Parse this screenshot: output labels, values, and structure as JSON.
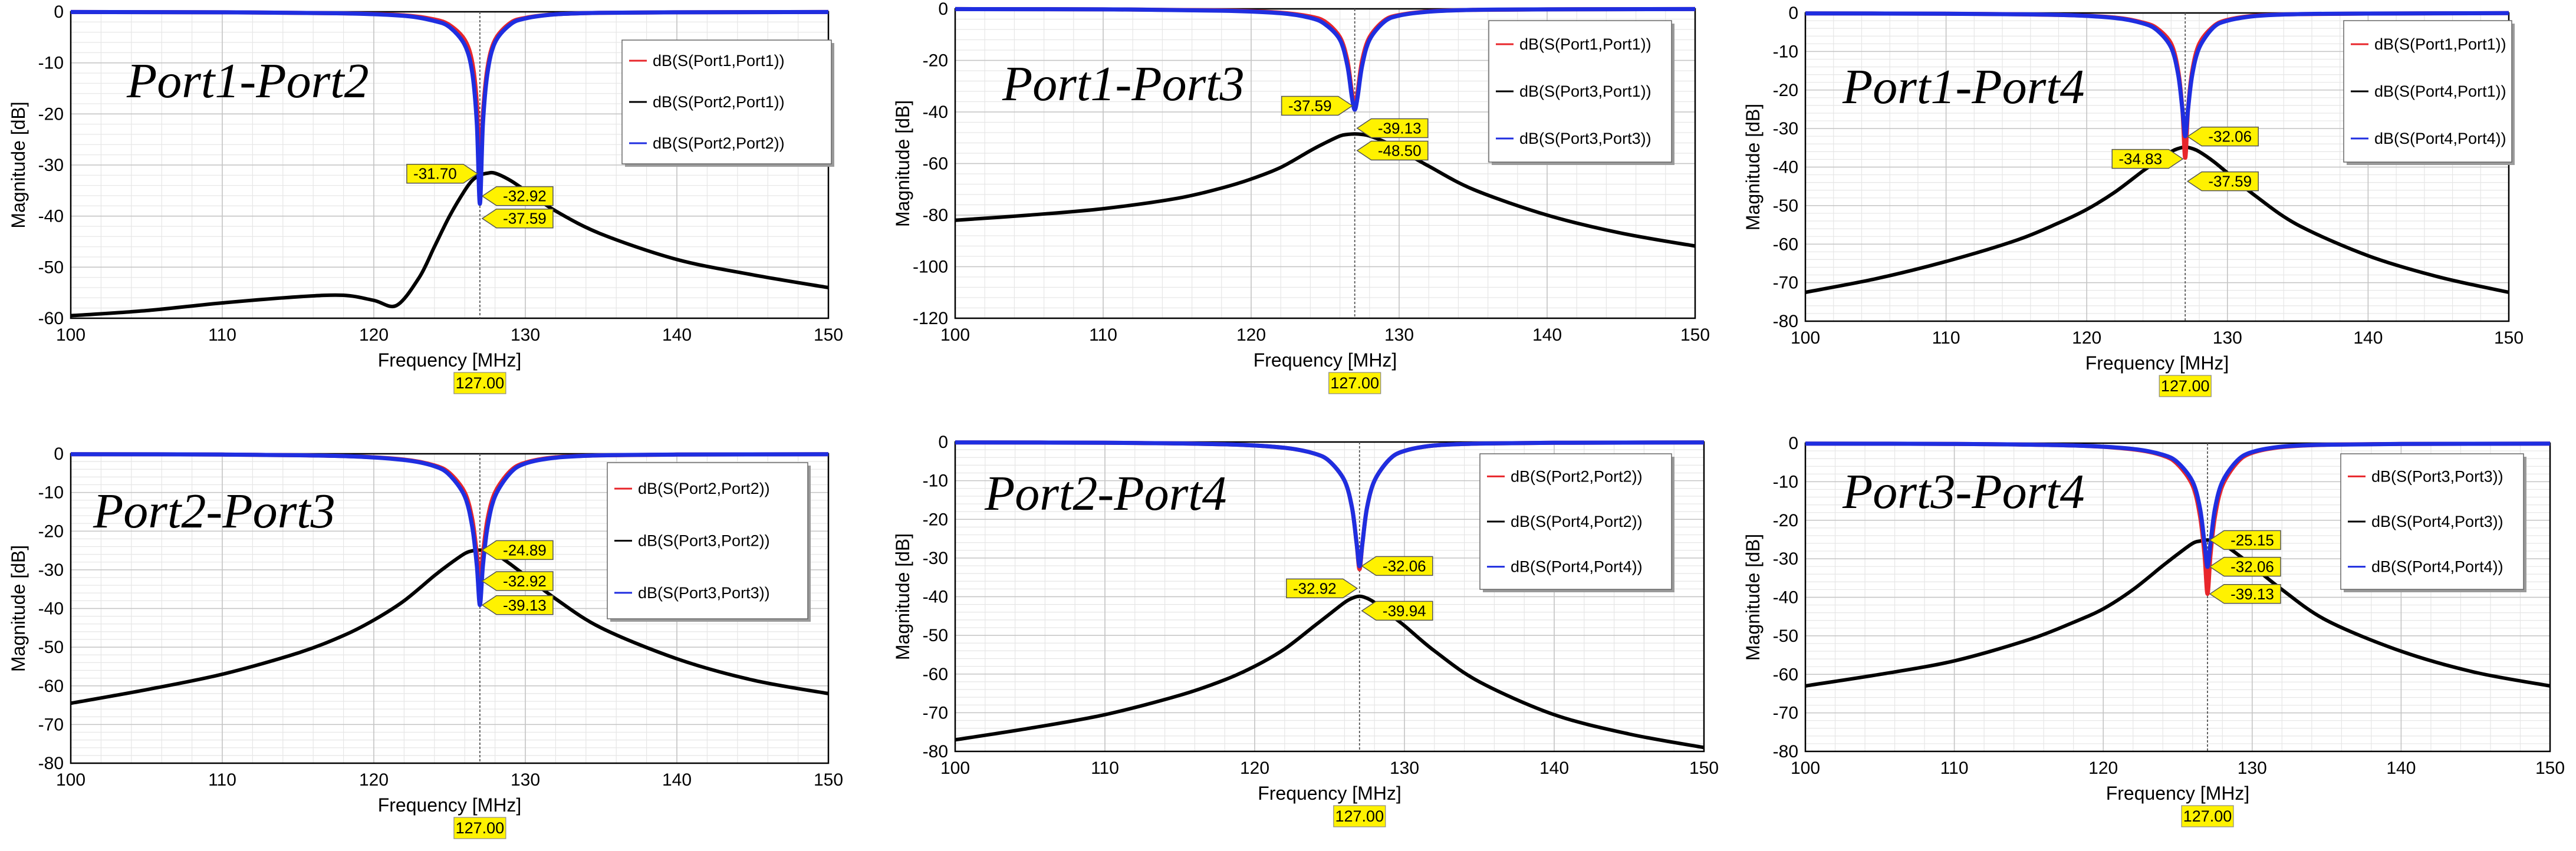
{
  "x_label": "Frequency [MHz]",
  "y_label": "Magnitude [dB]",
  "marker_label": "127.00",
  "colors": {
    "red": "#e8262b",
    "black": "#000000",
    "blue": "#1f2ee0",
    "marker": "#fff200"
  },
  "chart_data": [
    {
      "type": "line",
      "title": "Port1-Port2",
      "xlim": [
        100,
        150
      ],
      "ylim": [
        -60,
        0
      ],
      "x_ticks": [
        100,
        110,
        120,
        130,
        140,
        150
      ],
      "y_ticks": [
        0,
        -10,
        -20,
        -30,
        -40,
        -50,
        -60
      ],
      "legend": [
        "dB(S(Port1,Port1))",
        "dB(S(Port2,Port1))",
        "dB(S(Port2,Port2))"
      ],
      "marker_x": 127,
      "marker_values": [
        "-31.70",
        "-32.92",
        "-37.59"
      ],
      "series": [
        {
          "name": "dB(S(Port1,Port1))",
          "color": "red",
          "x": [
            100,
            110,
            118,
            122,
            124,
            125,
            126,
            126.5,
            126.8,
            127,
            127.2,
            127.5,
            128,
            129,
            130,
            132,
            135,
            140,
            150
          ],
          "y": [
            -0.05,
            -0.1,
            -0.3,
            -0.7,
            -1.5,
            -2.6,
            -5.5,
            -10,
            -18,
            -31.7,
            -20,
            -11,
            -5.5,
            -2.2,
            -1.2,
            -0.5,
            -0.2,
            -0.1,
            -0.05
          ]
        },
        {
          "name": "dB(S(Port2,Port1))",
          "color": "black",
          "x": [
            100,
            105,
            110,
            115,
            118,
            120,
            121.5,
            123,
            124,
            125,
            126,
            126.5,
            127,
            127.5,
            128,
            129,
            130,
            132,
            135,
            140,
            145,
            150
          ],
          "y": [
            -59.5,
            -58.5,
            -57,
            -55.8,
            -55.5,
            -56.5,
            -57.5,
            -52,
            -46,
            -40,
            -35,
            -33,
            -32,
            -31.6,
            -31.6,
            -33,
            -35,
            -39,
            -43.5,
            -48.5,
            -51.5,
            -54
          ]
        },
        {
          "name": "dB(S(Port2,Port2))",
          "color": "blue",
          "x": [
            100,
            110,
            118,
            122,
            124,
            125,
            126,
            126.5,
            126.8,
            127,
            127.2,
            127.5,
            128,
            129,
            130,
            132,
            135,
            140,
            150
          ],
          "y": [
            -0.05,
            -0.1,
            -0.3,
            -0.8,
            -1.8,
            -3,
            -6.5,
            -12,
            -22,
            -37.6,
            -22,
            -12,
            -6,
            -2.5,
            -1.3,
            -0.5,
            -0.2,
            -0.1,
            -0.05
          ]
        }
      ]
    },
    {
      "type": "line",
      "title": "Port1-Port3",
      "xlim": [
        100,
        150
      ],
      "ylim": [
        -120,
        0
      ],
      "x_ticks": [
        100,
        110,
        120,
        130,
        140,
        150
      ],
      "y_ticks": [
        0,
        -20,
        -40,
        -60,
        -80,
        -100,
        -120
      ],
      "legend": [
        "dB(S(Port1,Port1))",
        "dB(S(Port3,Port1))",
        "dB(S(Port3,Port3))"
      ],
      "marker_x": 127,
      "marker_values": [
        "-37.59",
        "-39.13",
        "-48.50"
      ],
      "series": [
        {
          "name": "dB(S(Port1,Port1))",
          "color": "red",
          "x": [
            100,
            110,
            118,
            122,
            124,
            125,
            126,
            126.5,
            126.8,
            127,
            127.2,
            127.5,
            128,
            129,
            130,
            132,
            135,
            140,
            150
          ],
          "y": [
            -0.1,
            -0.2,
            -0.6,
            -1.5,
            -3,
            -5,
            -11,
            -20,
            -32,
            -37.6,
            -32,
            -20,
            -11,
            -4.5,
            -2.4,
            -1,
            -0.4,
            -0.2,
            -0.1
          ]
        },
        {
          "name": "dB(S(Port3,Port1))",
          "color": "black",
          "x": [
            100,
            105,
            110,
            115,
            118,
            120,
            122,
            124,
            125,
            126,
            126.5,
            127,
            127.5,
            128,
            129,
            130,
            132,
            135,
            140,
            145,
            150
          ],
          "y": [
            -82,
            -80,
            -77.5,
            -73.5,
            -69.5,
            -66,
            -61.5,
            -55,
            -52,
            -49.3,
            -48.7,
            -48.5,
            -48.7,
            -49.3,
            -51.5,
            -54.5,
            -61,
            -70,
            -80,
            -87,
            -92
          ]
        },
        {
          "name": "dB(S(Port3,Port3))",
          "color": "blue",
          "x": [
            100,
            110,
            118,
            122,
            124,
            125,
            126,
            126.5,
            126.8,
            127,
            127.2,
            127.5,
            128,
            129,
            130,
            132,
            135,
            140,
            150
          ],
          "y": [
            -0.1,
            -0.2,
            -0.7,
            -1.7,
            -3.5,
            -6,
            -12,
            -22,
            -34,
            -39.1,
            -34,
            -22,
            -12,
            -5,
            -2.6,
            -1.1,
            -0.4,
            -0.2,
            -0.1
          ]
        }
      ]
    },
    {
      "type": "line",
      "title": "Port1-Port4",
      "xlim": [
        100,
        150
      ],
      "ylim": [
        -80,
        0
      ],
      "x_ticks": [
        100,
        110,
        120,
        130,
        140,
        150
      ],
      "y_ticks": [
        0,
        -10,
        -20,
        -30,
        -40,
        -50,
        -60,
        -70,
        -80
      ],
      "legend": [
        "dB(S(Port1,Port1))",
        "dB(S(Port4,Port1))",
        "dB(S(Port4,Port4))"
      ],
      "marker_x": 127,
      "marker_values": [
        "-34.83",
        "-32.06",
        "-37.59"
      ],
      "series": [
        {
          "name": "dB(S(Port1,Port1))",
          "color": "red",
          "x": [
            100,
            110,
            118,
            122,
            124,
            125,
            126,
            126.5,
            126.8,
            127,
            127.2,
            127.5,
            128,
            129,
            130,
            132,
            135,
            140,
            150
          ],
          "y": [
            -0.1,
            -0.2,
            -0.5,
            -1.2,
            -2.5,
            -4,
            -8,
            -15,
            -25,
            -37.6,
            -25,
            -15,
            -8,
            -3.5,
            -1.8,
            -0.7,
            -0.3,
            -0.15,
            -0.05
          ]
        },
        {
          "name": "dB(S(Port4,Port1))",
          "color": "black",
          "x": [
            100,
            105,
            110,
            115,
            118,
            120,
            122,
            124,
            125,
            126,
            126.5,
            127,
            127.5,
            128,
            129,
            130,
            132,
            135,
            140,
            145,
            150
          ],
          "y": [
            -72.5,
            -69,
            -64.5,
            -59,
            -54.5,
            -51,
            -46.5,
            -41,
            -38.5,
            -36,
            -35.2,
            -34.8,
            -35.2,
            -36,
            -38.5,
            -41.5,
            -47.5,
            -55,
            -63,
            -68.5,
            -72.5
          ]
        },
        {
          "name": "dB(S(Port4,Port4))",
          "color": "blue",
          "x": [
            100,
            110,
            118,
            122,
            124,
            125,
            126,
            126.5,
            126.8,
            127,
            127.2,
            127.5,
            128,
            129,
            130,
            132,
            135,
            140,
            150
          ],
          "y": [
            -0.1,
            -0.2,
            -0.5,
            -1.3,
            -2.7,
            -4.5,
            -9,
            -16,
            -25,
            -32,
            -25,
            -16,
            -9,
            -3.8,
            -2,
            -0.8,
            -0.3,
            -0.15,
            -0.05
          ]
        }
      ]
    },
    {
      "type": "line",
      "title": "Port2-Port3",
      "xlim": [
        100,
        150
      ],
      "ylim": [
        -80,
        0
      ],
      "x_ticks": [
        100,
        110,
        120,
        130,
        140,
        150
      ],
      "y_ticks": [
        0,
        -10,
        -20,
        -30,
        -40,
        -50,
        -60,
        -70,
        -80
      ],
      "legend": [
        "dB(S(Port2,Port2))",
        "dB(S(Port3,Port2))",
        "dB(S(Port3,Port3))"
      ],
      "marker_x": 127,
      "marker_values": [
        "-24.89",
        "-32.92",
        "-39.13"
      ],
      "series": [
        {
          "name": "dB(S(Port2,Port2))",
          "color": "red",
          "x": [
            100,
            110,
            118,
            122,
            124,
            125,
            126,
            126.5,
            126.8,
            127,
            127.2,
            127.5,
            128,
            129,
            130,
            132,
            135,
            140,
            150
          ],
          "y": [
            -0.1,
            -0.2,
            -0.6,
            -1.5,
            -3,
            -5,
            -10,
            -17,
            -26,
            -32.9,
            -26,
            -17,
            -10,
            -4.5,
            -2.3,
            -0.9,
            -0.4,
            -0.2,
            -0.1
          ]
        },
        {
          "name": "dB(S(Port3,Port2))",
          "color": "black",
          "x": [
            100,
            105,
            110,
            115,
            118,
            120,
            122,
            124,
            125,
            126,
            126.5,
            127,
            127.5,
            128,
            129,
            130,
            132,
            135,
            140,
            145,
            150
          ],
          "y": [
            -64.5,
            -61,
            -57,
            -51.5,
            -47,
            -43,
            -38,
            -31.5,
            -28.5,
            -25.8,
            -25.1,
            -24.9,
            -25.1,
            -25.8,
            -28.5,
            -31.5,
            -37.5,
            -45,
            -53,
            -58.5,
            -62
          ]
        },
        {
          "name": "dB(S(Port3,Port3))",
          "color": "blue",
          "x": [
            100,
            110,
            118,
            122,
            124,
            125,
            126,
            126.5,
            126.8,
            127,
            127.2,
            127.5,
            128,
            129,
            130,
            132,
            135,
            140,
            150
          ],
          "y": [
            -0.1,
            -0.2,
            -0.6,
            -1.6,
            -3.2,
            -5.5,
            -11,
            -19,
            -29,
            -39.1,
            -29,
            -19,
            -11,
            -5,
            -2.5,
            -1,
            -0.4,
            -0.2,
            -0.1
          ]
        }
      ]
    },
    {
      "type": "line",
      "title": "Port2-Port4",
      "xlim": [
        100,
        150
      ],
      "ylim": [
        -80,
        0
      ],
      "x_ticks": [
        100,
        110,
        120,
        130,
        140,
        150
      ],
      "y_ticks": [
        0,
        -10,
        -20,
        -30,
        -40,
        -50,
        -60,
        -70,
        -80
      ],
      "legend": [
        "dB(S(Port2,Port2))",
        "dB(S(Port4,Port2))",
        "dB(S(Port4,Port4))"
      ],
      "marker_x": 127,
      "marker_values": [
        "-32.92",
        "-32.06",
        "-39.94"
      ],
      "series": [
        {
          "name": "dB(S(Port2,Port2))",
          "color": "red",
          "x": [
            100,
            110,
            118,
            122,
            124,
            125,
            126,
            126.5,
            126.8,
            127,
            127.2,
            127.5,
            128,
            129,
            130,
            132,
            135,
            140,
            150
          ],
          "y": [
            -0.1,
            -0.2,
            -0.6,
            -1.5,
            -3,
            -5,
            -10,
            -17,
            -26,
            -32.9,
            -26,
            -17,
            -10,
            -4.5,
            -2.3,
            -0.9,
            -0.4,
            -0.2,
            -0.1
          ]
        },
        {
          "name": "dB(S(Port4,Port2))",
          "color": "black",
          "x": [
            100,
            105,
            110,
            115,
            118,
            120,
            122,
            124,
            125,
            126,
            126.5,
            127,
            127.5,
            128,
            129,
            130,
            132,
            135,
            140,
            145,
            150
          ],
          "y": [
            -77,
            -74,
            -70.5,
            -65.5,
            -61.5,
            -58,
            -53.5,
            -47.5,
            -44.5,
            -41.5,
            -40.4,
            -39.9,
            -40.4,
            -41.5,
            -44.5,
            -47.5,
            -54,
            -62,
            -70.5,
            -75.5,
            -79
          ]
        },
        {
          "name": "dB(S(Port4,Port4))",
          "color": "blue",
          "x": [
            100,
            110,
            118,
            122,
            124,
            125,
            126,
            126.5,
            126.8,
            127,
            127.2,
            127.5,
            128,
            129,
            130,
            132,
            135,
            140,
            150
          ],
          "y": [
            -0.1,
            -0.2,
            -0.6,
            -1.5,
            -3,
            -5,
            -10,
            -17,
            -26,
            -32.1,
            -26,
            -17,
            -10,
            -4.5,
            -2.3,
            -0.9,
            -0.4,
            -0.2,
            -0.1
          ]
        }
      ]
    },
    {
      "type": "line",
      "title": "Port3-Port4",
      "xlim": [
        100,
        150
      ],
      "ylim": [
        -80,
        0
      ],
      "x_ticks": [
        100,
        110,
        120,
        130,
        140,
        150
      ],
      "y_ticks": [
        0,
        -10,
        -20,
        -30,
        -40,
        -50,
        -60,
        -70,
        -80
      ],
      "legend": [
        "dB(S(Port3,Port3))",
        "dB(S(Port4,Port3))",
        "dB(S(Port4,Port4))"
      ],
      "marker_x": 127,
      "marker_values": [
        "-25.15",
        "-32.06",
        "-39.13"
      ],
      "series": [
        {
          "name": "dB(S(Port3,Port3))",
          "color": "red",
          "x": [
            100,
            110,
            118,
            122,
            124,
            125,
            126,
            126.5,
            126.8,
            127,
            127.2,
            127.5,
            128,
            129,
            130,
            132,
            135,
            140,
            150
          ],
          "y": [
            -0.1,
            -0.2,
            -0.6,
            -1.6,
            -3.2,
            -5.5,
            -11,
            -19,
            -29,
            -39.1,
            -29,
            -19,
            -11,
            -5,
            -2.5,
            -1,
            -0.4,
            -0.2,
            -0.1
          ]
        },
        {
          "name": "dB(S(Port4,Port3))",
          "color": "black",
          "x": [
            100,
            105,
            110,
            115,
            118,
            120,
            122,
            124,
            125,
            126,
            126.5,
            127,
            127.5,
            128,
            129,
            130,
            132,
            135,
            140,
            145,
            150
          ],
          "y": [
            -63,
            -60,
            -56.5,
            -51,
            -46.5,
            -43,
            -38,
            -31.8,
            -28.8,
            -26,
            -25.4,
            -25.15,
            -25.4,
            -26,
            -28.8,
            -31.8,
            -38,
            -46,
            -54,
            -59.5,
            -63
          ]
        },
        {
          "name": "dB(S(Port4,Port4))",
          "color": "blue",
          "x": [
            100,
            110,
            118,
            122,
            124,
            125,
            126,
            126.5,
            126.8,
            127,
            127.2,
            127.5,
            128,
            129,
            130,
            132,
            135,
            140,
            150
          ],
          "y": [
            -0.1,
            -0.2,
            -0.6,
            -1.5,
            -3,
            -5,
            -10,
            -17,
            -26,
            -32.1,
            -26,
            -17,
            -10,
            -4.5,
            -2.3,
            -0.9,
            -0.4,
            -0.2,
            -0.1
          ]
        }
      ]
    }
  ]
}
